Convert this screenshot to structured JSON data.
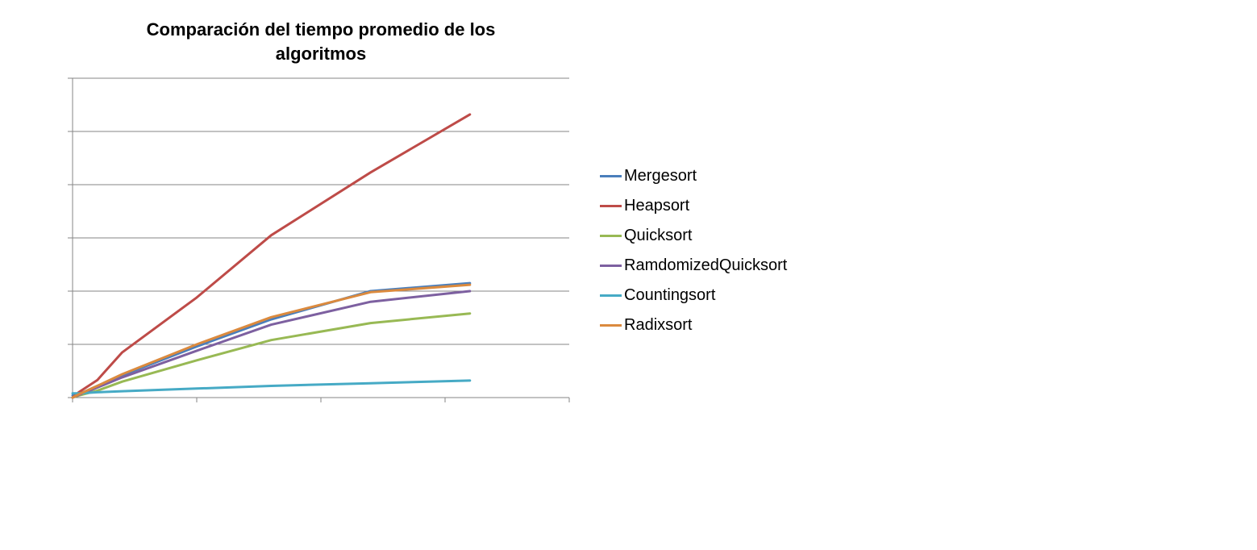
{
  "chart_data": {
    "type": "line",
    "title": "Comparación del tiempo promedio de los algoritmos",
    "xlabel": "",
    "ylabel": "",
    "x": [
      0,
      0.05,
      0.2,
      0.4,
      1,
      1.6,
      2.4,
      3.2
    ],
    "x_range": [
      0,
      4
    ],
    "y_range": [
      0,
      6
    ],
    "y_gridlines": true,
    "legend_position": "right",
    "series": [
      {
        "name": "Mergesort",
        "color": "#4A7EBB",
        "values": [
          0.04,
          0.06,
          0.22,
          0.42,
          0.96,
          1.47,
          2.0,
          2.15
        ]
      },
      {
        "name": "Heapsort",
        "color": "#BE4B48",
        "values": [
          0.0,
          0.1,
          0.33,
          0.85,
          1.88,
          3.05,
          4.23,
          5.32
        ]
      },
      {
        "name": "Quicksort",
        "color": "#98B954",
        "values": [
          0.0,
          0.04,
          0.13,
          0.3,
          0.7,
          1.08,
          1.4,
          1.58
        ]
      },
      {
        "name": "RamdomizedQuicksort",
        "color": "#7D60A0",
        "values": [
          0.0,
          0.05,
          0.19,
          0.38,
          0.88,
          1.37,
          1.8,
          2.0
        ]
      },
      {
        "name": "Countingsort",
        "color": "#46AAC5",
        "values": [
          0.08,
          0.08,
          0.1,
          0.12,
          0.17,
          0.22,
          0.27,
          0.32
        ]
      },
      {
        "name": "Radixsort",
        "color": "#DB8A3E",
        "values": [
          0.0,
          0.06,
          0.22,
          0.44,
          1.0,
          1.51,
          1.98,
          2.12
        ]
      }
    ]
  }
}
